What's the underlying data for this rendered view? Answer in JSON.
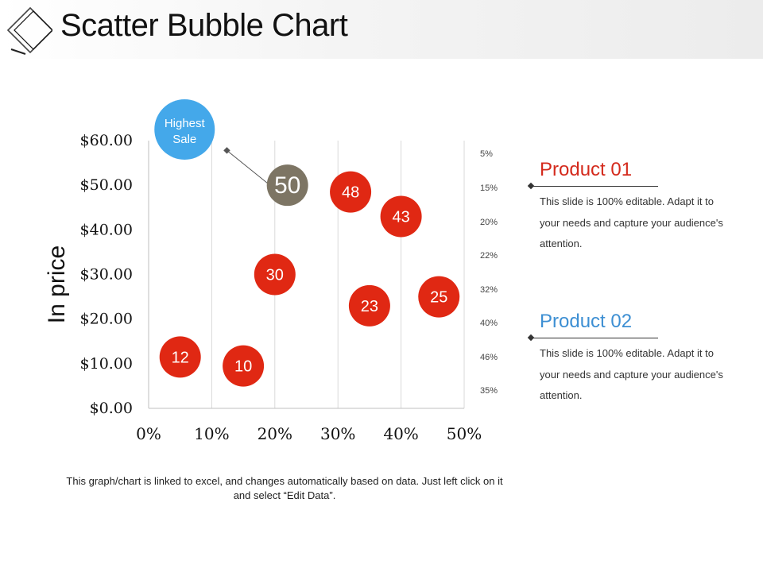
{
  "header": {
    "title": "Scatter Bubble Chart"
  },
  "chart_data": {
    "type": "scatter",
    "title": "",
    "ylabel": "In price",
    "xlabel": "",
    "ylim": [
      0,
      60
    ],
    "xlim": [
      0,
      50
    ],
    "y_ticks": [
      0,
      10,
      20,
      30,
      40,
      50,
      60
    ],
    "y_tick_labels": [
      "$0.00",
      "$10.00",
      "$20.00",
      "$30.00",
      "$40.00",
      "$50.00",
      "$60.00"
    ],
    "x_ticks": [
      0,
      10,
      20,
      30,
      40,
      50
    ],
    "x_tick_labels": [
      "0%",
      "10%",
      "20%",
      "30%",
      "40%",
      "50%"
    ],
    "grid": "vertical",
    "points": [
      {
        "x": 5,
        "y": 11.5,
        "label": "12",
        "color": "#e02813"
      },
      {
        "x": 15,
        "y": 9.5,
        "label": "10",
        "color": "#e02813"
      },
      {
        "x": 20,
        "y": 30,
        "label": "30",
        "color": "#e02813"
      },
      {
        "x": 32,
        "y": 48.5,
        "label": "48",
        "color": "#e02813"
      },
      {
        "x": 40,
        "y": 43,
        "label": "43",
        "color": "#e02813"
      },
      {
        "x": 35,
        "y": 23,
        "label": "23",
        "color": "#e02813"
      },
      {
        "x": 46,
        "y": 25,
        "label": "25",
        "color": "#e02813"
      },
      {
        "x": 22,
        "y": 50,
        "label": "50",
        "color": "#7d7564"
      }
    ],
    "highlight": {
      "x": 5.7,
      "y": 62.5,
      "label_lines": [
        "Highest",
        "Sale"
      ],
      "color": "#44a8ea",
      "pointer_from": {
        "x": 12.4,
        "y": 57.8
      }
    },
    "pointer_color": "#555555"
  },
  "percent_list": [
    "5%",
    "15%",
    "20%",
    "22%",
    "32%",
    "40%",
    "46%",
    "35%"
  ],
  "products": [
    {
      "title": "Product 01",
      "color": "#d42a1c",
      "description": "This slide is 100% editable. Adapt it to your needs and capture your audience's attention."
    },
    {
      "title": "Product 02",
      "color": "#3d8fd3",
      "description": "This slide is 100% editable. Adapt it to your needs and capture your audience's attention."
    }
  ],
  "footnote": "This graph/chart is linked to excel, and changes automatically based on data. Just left click on it and select “Edit Data”."
}
